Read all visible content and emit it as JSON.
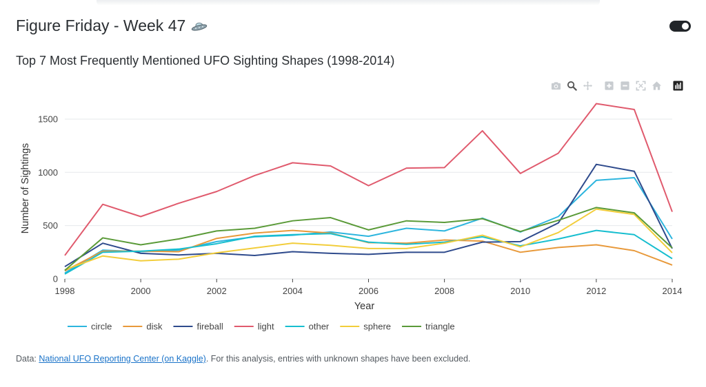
{
  "header": {
    "title": "Figure Friday - Week 47"
  },
  "chart_data": {
    "type": "line",
    "title": "Top 7 Most Frequently Mentioned UFO Sighting Shapes (1998-2014)",
    "xlabel": "Year",
    "ylabel": "Number of Sightings",
    "xlim": [
      1998,
      2014
    ],
    "ylim": [
      0,
      1700
    ],
    "x_ticks": [
      1998,
      2000,
      2002,
      2004,
      2006,
      2008,
      2010,
      2012,
      2014
    ],
    "y_ticks": [
      0,
      500,
      1000,
      1500
    ],
    "x": [
      1998,
      1999,
      2000,
      2001,
      2002,
      2003,
      2004,
      2005,
      2006,
      2007,
      2008,
      2009,
      2010,
      2011,
      2012,
      2013,
      2014
    ],
    "legend_position": "bottom",
    "series": [
      {
        "name": "circle",
        "color": "#2cb5de",
        "values": [
          55,
          270,
          255,
          270,
          350,
          395,
          410,
          440,
          400,
          475,
          450,
          570,
          440,
          585,
          925,
          950,
          375
        ]
      },
      {
        "name": "disk",
        "color": "#e8993a",
        "values": [
          75,
          260,
          260,
          255,
          380,
          430,
          455,
          430,
          340,
          335,
          365,
          355,
          250,
          295,
          320,
          265,
          130
        ]
      },
      {
        "name": "fireball",
        "color": "#2e4a8c",
        "values": [
          115,
          335,
          240,
          225,
          240,
          220,
          255,
          240,
          230,
          250,
          250,
          345,
          350,
          525,
          1075,
          1010,
          285
        ]
      },
      {
        "name": "light",
        "color": "#e05a6d",
        "values": [
          220,
          700,
          585,
          710,
          820,
          970,
          1090,
          1060,
          875,
          1040,
          1045,
          1390,
          990,
          1180,
          1645,
          1590,
          630
        ]
      },
      {
        "name": "other",
        "color": "#17becf",
        "values": [
          45,
          250,
          260,
          280,
          330,
          400,
          415,
          425,
          345,
          325,
          345,
          395,
          310,
          375,
          455,
          415,
          190
        ]
      },
      {
        "name": "sphere",
        "color": "#f2cd3a",
        "values": [
          85,
          215,
          170,
          185,
          245,
          290,
          335,
          315,
          285,
          285,
          335,
          410,
          300,
          435,
          655,
          605,
          245
        ]
      },
      {
        "name": "triangle",
        "color": "#5a9a38",
        "values": [
          80,
          385,
          320,
          375,
          450,
          475,
          545,
          575,
          460,
          545,
          530,
          565,
          445,
          550,
          670,
          620,
          290
        ]
      }
    ]
  },
  "modebar": {
    "icons": [
      "camera-icon",
      "zoom-icon",
      "pan-icon",
      "zoom-in-icon",
      "zoom-out-icon",
      "autoscale-icon",
      "reset-axes-icon",
      "plotly-logo-icon"
    ]
  },
  "footer": {
    "prefix": "Data: ",
    "link_text": "National UFO Reporting Center (on Kaggle)",
    "suffix": ". For this analysis, entries with unknown shapes have been excluded."
  },
  "colors": {
    "grid": "#e6e8eb",
    "axis": "#444444",
    "link": "#1a73c9"
  }
}
